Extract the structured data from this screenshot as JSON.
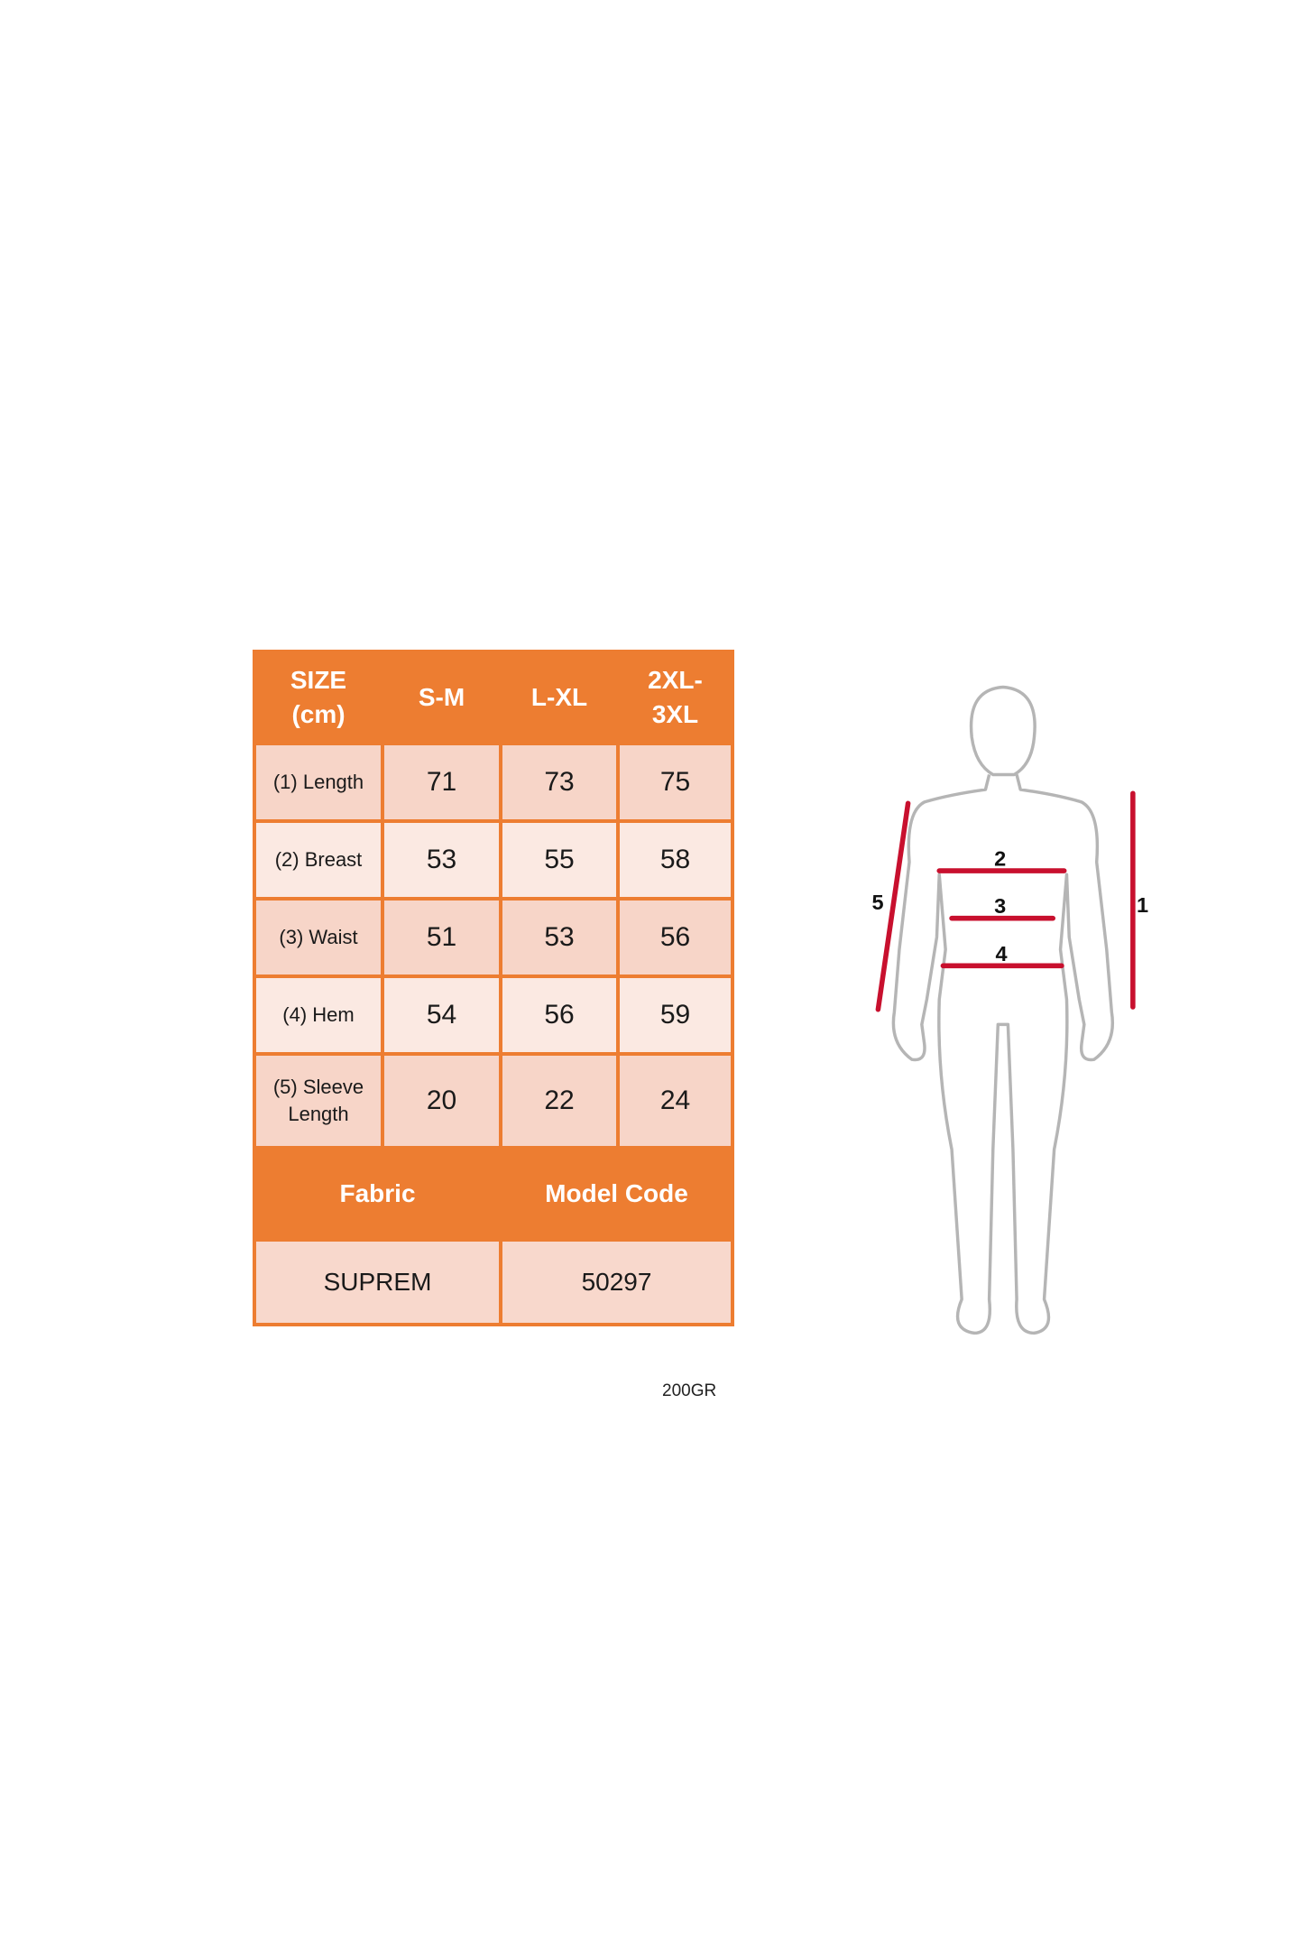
{
  "size_table": {
    "headers": [
      "SIZE (cm)",
      "S-M",
      "L-XL",
      "2XL-3XL"
    ],
    "header_lines": {
      "size": [
        "SIZE",
        "(cm)"
      ],
      "last": [
        "2XL-",
        "3XL"
      ]
    },
    "rows": [
      {
        "label": "(1) Length",
        "values": [
          "71",
          "73",
          "75"
        ]
      },
      {
        "label": "(2) Breast",
        "values": [
          "53",
          "55",
          "58"
        ]
      },
      {
        "label": "(3) Waist",
        "values": [
          "51",
          "53",
          "56"
        ]
      },
      {
        "label": "(4) Hem",
        "values": [
          "54",
          "56",
          "59"
        ]
      },
      {
        "label_lines": [
          "(5) Sleeve",
          "Length"
        ],
        "values": [
          "20",
          "22",
          "24"
        ]
      }
    ],
    "footer_headers": [
      "Fabric",
      "Model Code"
    ],
    "footer_values": [
      "SUPREM",
      "50297"
    ]
  },
  "fabric_weight": "200GR",
  "figure": {
    "markers": [
      "1",
      "2",
      "3",
      "4",
      "5"
    ]
  },
  "colors": {
    "header": "#ED7D31",
    "cell_dark": "#F7D5C8",
    "cell_light": "#FBE9E2",
    "measure_line": "#C8102E",
    "outline": "#B5B5B5"
  }
}
